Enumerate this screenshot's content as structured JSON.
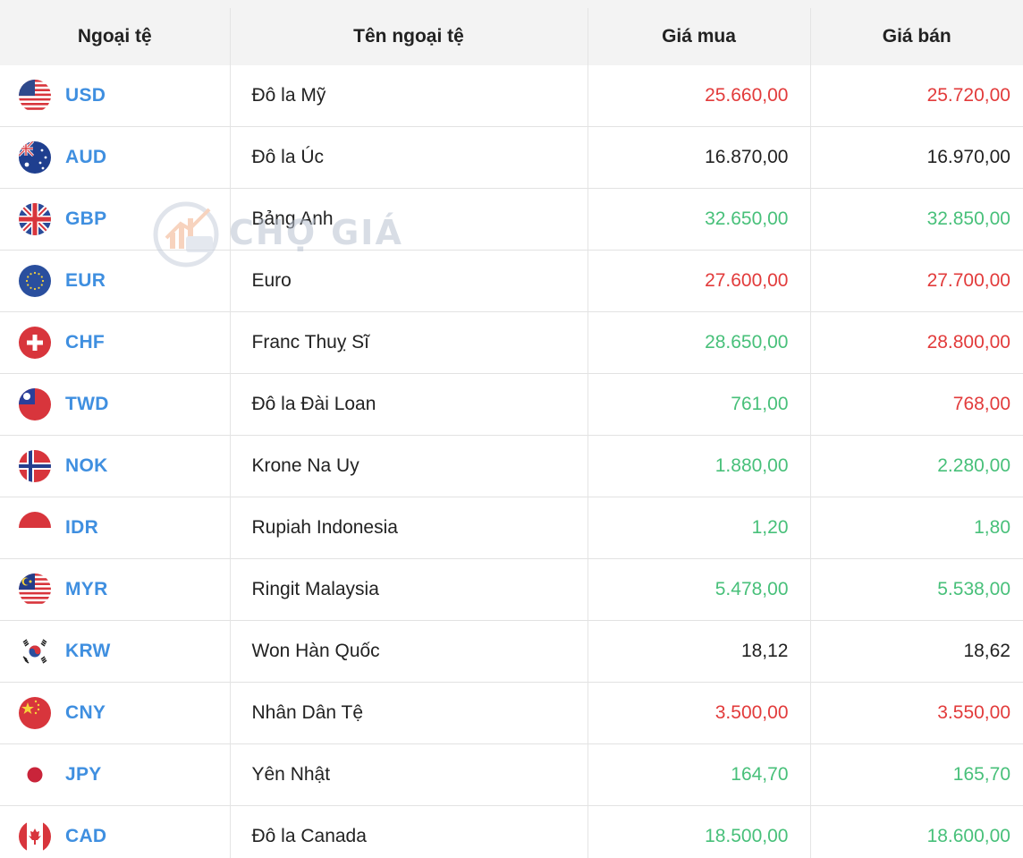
{
  "header": {
    "col_code": "Ngoại tệ",
    "col_name": "Tên ngoại tệ",
    "col_buy": "Giá mua",
    "col_sell": "Giá bán"
  },
  "watermark": {
    "text": "CHỢ GIÁ"
  },
  "colors": {
    "code_blue": "#3f8fe0",
    "up_green": "#48c07a",
    "down_red": "#e23b3b",
    "neutral": "#222222"
  },
  "rows": [
    {
      "code": "USD",
      "name": "Đô la Mỹ",
      "buy": "25.660,00",
      "sell": "25.720,00",
      "buy_trend": "down",
      "sell_trend": "down",
      "flag": "us-flag-icon"
    },
    {
      "code": "AUD",
      "name": "Đô la Úc",
      "buy": "16.870,00",
      "sell": "16.970,00",
      "buy_trend": "neutral",
      "sell_trend": "neutral",
      "flag": "au-flag-icon"
    },
    {
      "code": "GBP",
      "name": "Bảng Anh",
      "buy": "32.650,00",
      "sell": "32.850,00",
      "buy_trend": "up",
      "sell_trend": "up",
      "flag": "gb-flag-icon"
    },
    {
      "code": "EUR",
      "name": "Euro",
      "buy": "27.600,00",
      "sell": "27.700,00",
      "buy_trend": "down",
      "sell_trend": "down",
      "flag": "eu-flag-icon"
    },
    {
      "code": "CHF",
      "name": "Franc Thuỵ Sĩ",
      "buy": "28.650,00",
      "sell": "28.800,00",
      "buy_trend": "up",
      "sell_trend": "down",
      "flag": "ch-flag-icon"
    },
    {
      "code": "TWD",
      "name": "Đô la Đài Loan",
      "buy": "761,00",
      "sell": "768,00",
      "buy_trend": "up",
      "sell_trend": "down",
      "flag": "tw-flag-icon"
    },
    {
      "code": "NOK",
      "name": "Krone Na Uy",
      "buy": "1.880,00",
      "sell": "2.280,00",
      "buy_trend": "up",
      "sell_trend": "up",
      "flag": "no-flag-icon"
    },
    {
      "code": "IDR",
      "name": "Rupiah Indonesia",
      "buy": "1,20",
      "sell": "1,80",
      "buy_trend": "up",
      "sell_trend": "up",
      "flag": "id-flag-icon"
    },
    {
      "code": "MYR",
      "name": "Ringit Malaysia",
      "buy": "5.478,00",
      "sell": "5.538,00",
      "buy_trend": "up",
      "sell_trend": "up",
      "flag": "my-flag-icon"
    },
    {
      "code": "KRW",
      "name": "Won Hàn Quốc",
      "buy": "18,12",
      "sell": "18,62",
      "buy_trend": "neutral",
      "sell_trend": "neutral",
      "flag": "kr-flag-icon"
    },
    {
      "code": "CNY",
      "name": "Nhân Dân Tệ",
      "buy": "3.500,00",
      "sell": "3.550,00",
      "buy_trend": "down",
      "sell_trend": "down",
      "flag": "cn-flag-icon"
    },
    {
      "code": "JPY",
      "name": "Yên Nhật",
      "buy": "164,70",
      "sell": "165,70",
      "buy_trend": "up",
      "sell_trend": "up",
      "flag": "jp-flag-icon"
    },
    {
      "code": "CAD",
      "name": "Đô la Canada",
      "buy": "18.500,00",
      "sell": "18.600,00",
      "buy_trend": "up",
      "sell_trend": "up",
      "flag": "ca-flag-icon"
    }
  ]
}
